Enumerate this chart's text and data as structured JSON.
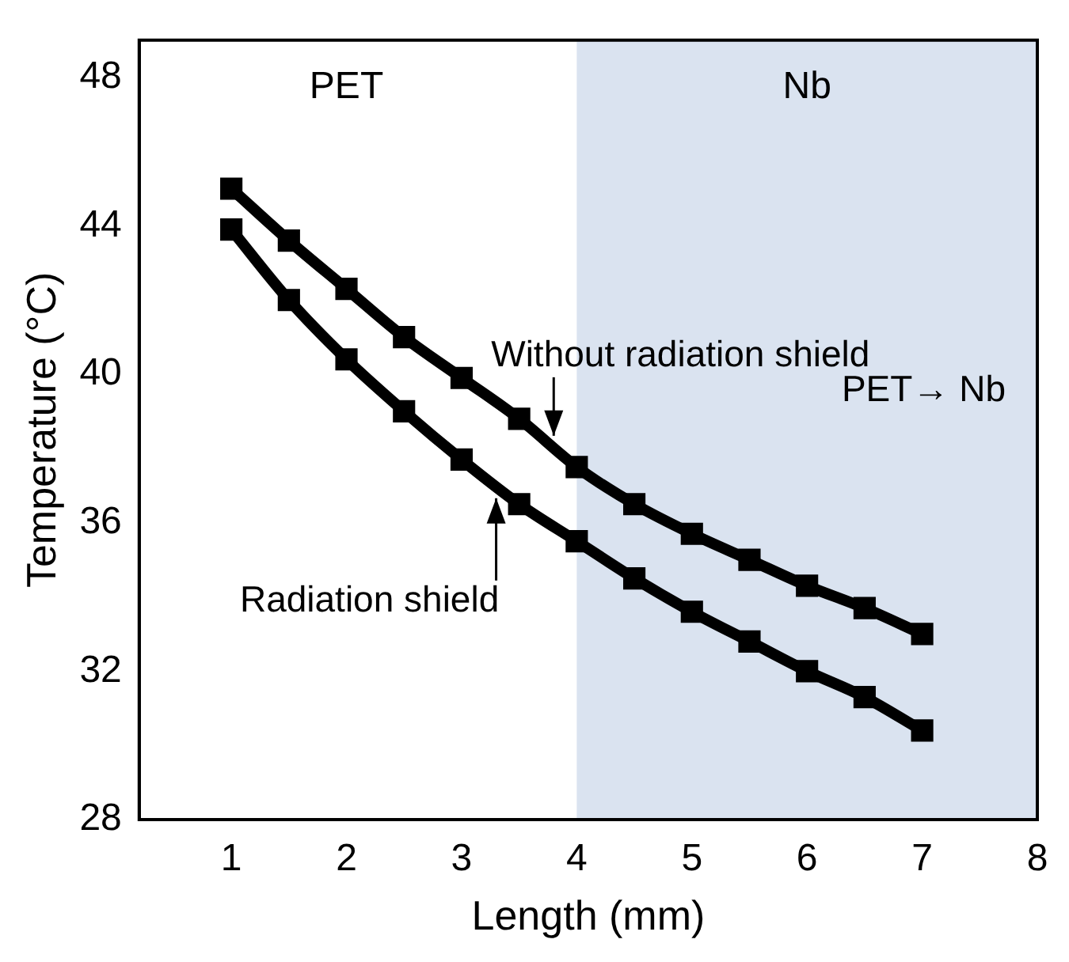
{
  "chart_data": {
    "type": "line",
    "xlabel": "Length (mm)",
    "ylabel": "Temperature (°C)",
    "x": [
      1,
      1.5,
      2,
      2.5,
      3,
      3.5,
      4,
      4.5,
      5,
      5.5,
      6,
      6.5,
      7
    ],
    "series": [
      {
        "color": "#000000",
        "values": [
          45,
          43.6,
          42.3,
          41,
          39.9,
          38.8,
          37.5,
          36.5,
          35.7,
          35,
          34.3,
          33.7,
          33
        ]
      },
      {
        "color": "#000000",
        "values": [
          43.9,
          42,
          40.4,
          39,
          37.7,
          36.5,
          35.5,
          34.5,
          33.6,
          32.8,
          32,
          31.3,
          30.4
        ]
      }
    ],
    "xlim": [
      0.2,
      8
    ],
    "xticks": [
      1,
      2,
      3,
      4,
      5,
      6,
      7,
      8
    ],
    "ylim": [
      28,
      49
    ],
    "yticks": [
      28,
      32,
      36,
      40,
      44,
      48
    ],
    "bands": [
      {
        "axis": "x",
        "from": 4,
        "to": 8,
        "label": "Nb",
        "color": "#dae3f0"
      }
    ],
    "annotations": [
      {
        "text": "Without radiation shield",
        "x": 3.8,
        "y": 38
      },
      {
        "text": "Radiation shield",
        "x": 3.3,
        "y": 37
      },
      "PET",
      "PET→ Nb"
    ],
    "marker": "square",
    "line_style": "solid",
    "grid": false,
    "legend": false
  }
}
